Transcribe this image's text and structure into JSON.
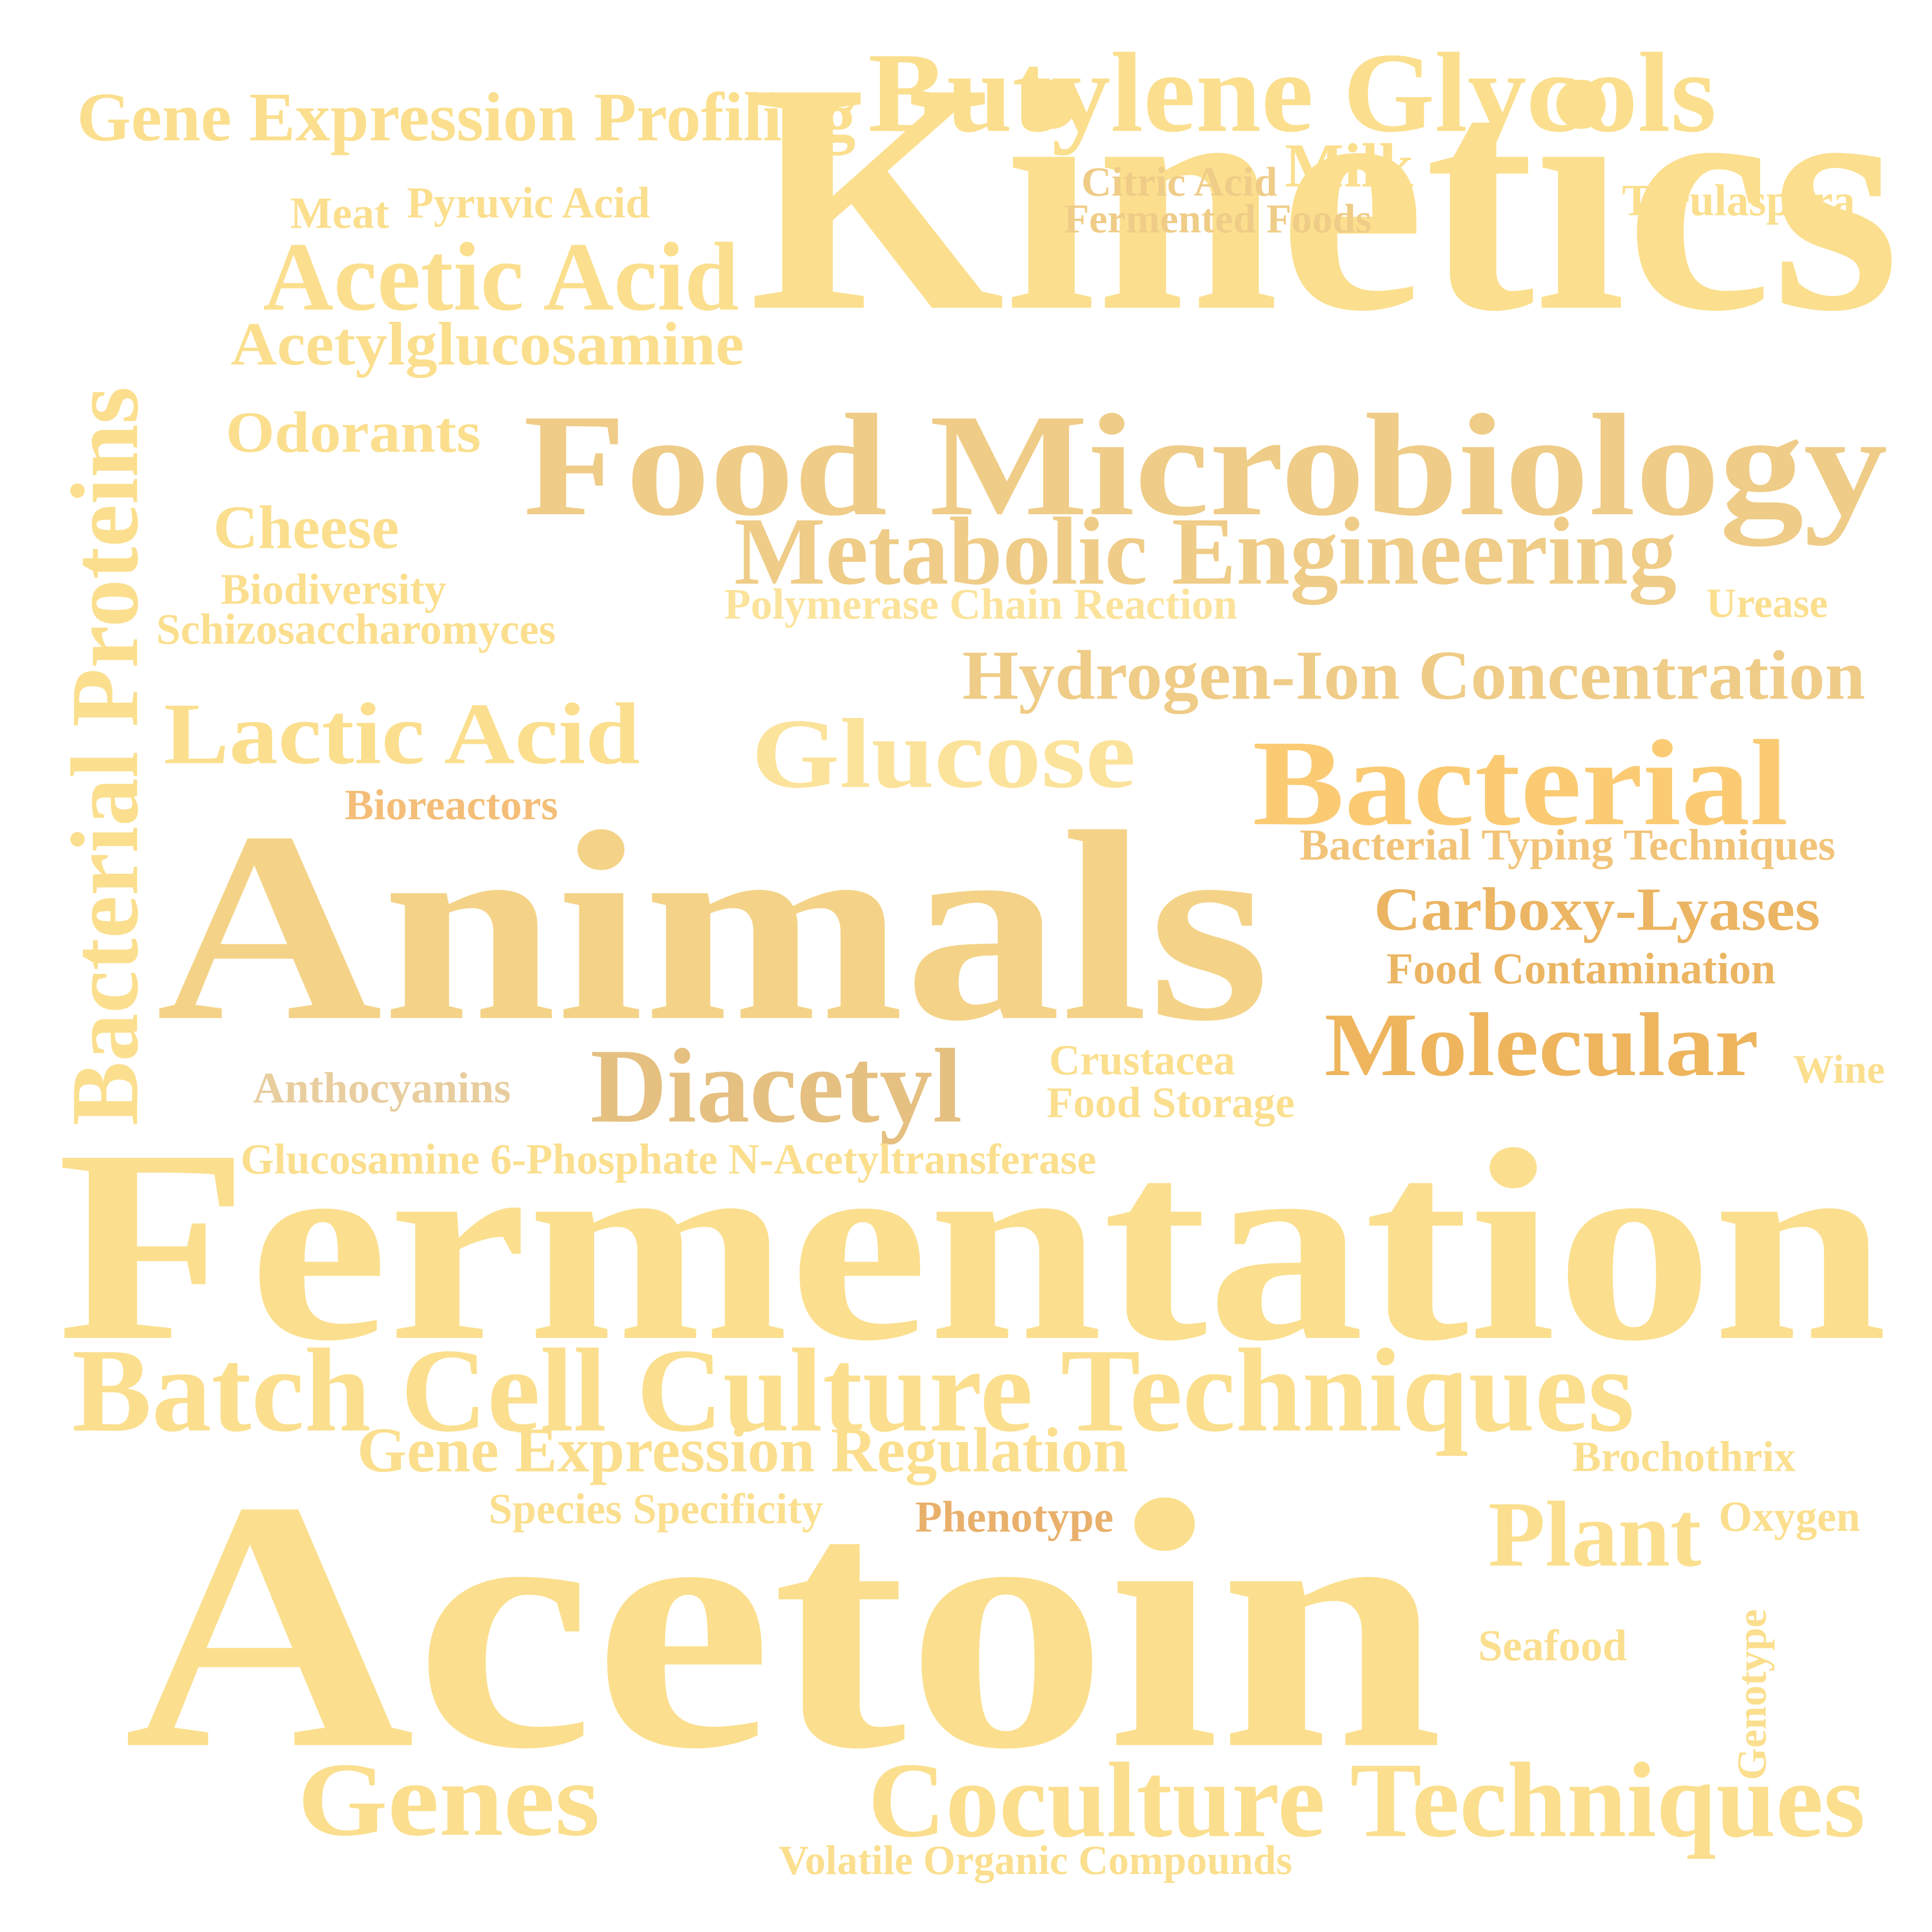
{
  "words": [
    {
      "text": "Kinetics",
      "color": "#FBDF8E"
    },
    {
      "text": "Fermentation",
      "color": "#FBDF8E"
    },
    {
      "text": "Acetoin",
      "color": "#FBDF8E"
    },
    {
      "text": "Animals",
      "color": "#F4D388"
    },
    {
      "text": "Food Microbiology",
      "color": "#EFCC87"
    },
    {
      "text": "Butylene Glycols",
      "color": "#FBDF8E"
    },
    {
      "text": "Batch Cell Culture Techniques",
      "color": "#FBDF8E"
    },
    {
      "text": "Coculture Techniques",
      "color": "#FBDF8E"
    },
    {
      "text": "Metabolic Engineering",
      "color": "#EFCC87"
    },
    {
      "text": "Bacterial",
      "color": "#FBCB74"
    },
    {
      "text": "Glucose",
      "color": "#FCE39B"
    },
    {
      "text": "Genes",
      "color": "#FBDF8E"
    },
    {
      "text": "Lactic Acid",
      "color": "#FBDF8E"
    },
    {
      "text": "Acetic Acid",
      "color": "#FBDF8E"
    },
    {
      "text": "Diacetyl",
      "color": "#E5C081"
    },
    {
      "text": "Molecular",
      "color": "#EEB55E"
    },
    {
      "text": "Plant",
      "color": "#FBDF8E"
    },
    {
      "text": "Bacterial Proteins",
      "color": "#FBDF8E"
    },
    {
      "text": "Hydrogen-Ion Concentration",
      "color": "#EFCC87"
    },
    {
      "text": "Gene Expression Regulation",
      "color": "#FBDF8E"
    },
    {
      "text": "Gene Expression Profiling",
      "color": "#FBDF8E"
    },
    {
      "text": "Acetylglucosamine",
      "color": "#FBDF8E"
    },
    {
      "text": "Odorants",
      "color": "#FBDF8E"
    },
    {
      "text": "Cheese",
      "color": "#FBDF8E"
    },
    {
      "text": "Carboxy-Lyases",
      "color": "#EBB563"
    },
    {
      "text": "Milk",
      "color": "#FBDF8E"
    },
    {
      "text": "Glucosamine 6-Phosphate N-Acetyltransferase",
      "color": "#FBDF8E"
    },
    {
      "text": "Bacterial Typing Techniques",
      "color": "#F2C479"
    },
    {
      "text": "Food Contamination",
      "color": "#EBB563"
    },
    {
      "text": "Polymerase Chain Reaction",
      "color": "#FCE39B"
    },
    {
      "text": "Schizosaccharomyces",
      "color": "#FBDF8E"
    },
    {
      "text": "Biodiversity",
      "color": "#FBDF8E"
    },
    {
      "text": "Volatile Organic Compounds",
      "color": "#FBDF8E"
    },
    {
      "text": "Species Specificity",
      "color": "#FBDF8E"
    },
    {
      "text": "Anthocyanins",
      "color": "#E8CD9E"
    },
    {
      "text": "Crustacea",
      "color": "#FBDF8E"
    },
    {
      "text": "Food Storage",
      "color": "#FBDF8E"
    },
    {
      "text": "Fermented Foods",
      "color": "#EFCC87"
    },
    {
      "text": "Citric Acid",
      "color": "#EFCC87"
    },
    {
      "text": "Pyruvic Acid",
      "color": "#FBDF8E"
    },
    {
      "text": "Meat",
      "color": "#FBDF8E"
    },
    {
      "text": "Torulaspora",
      "color": "#FBDF8E"
    },
    {
      "text": "Bioreactors",
      "color": "#F4BE78"
    },
    {
      "text": "Phenotype",
      "color": "#E9B06C"
    },
    {
      "text": "Urease",
      "color": "#FBDF8E"
    },
    {
      "text": "Brochothrix",
      "color": "#FBDF8E"
    },
    {
      "text": "Oxygen",
      "color": "#FBDF8E"
    },
    {
      "text": "Seafood",
      "color": "#FBDF8E"
    },
    {
      "text": "Genotype",
      "color": "#FBDF8E"
    },
    {
      "text": "Wine",
      "color": "#FBDF8E"
    }
  ]
}
